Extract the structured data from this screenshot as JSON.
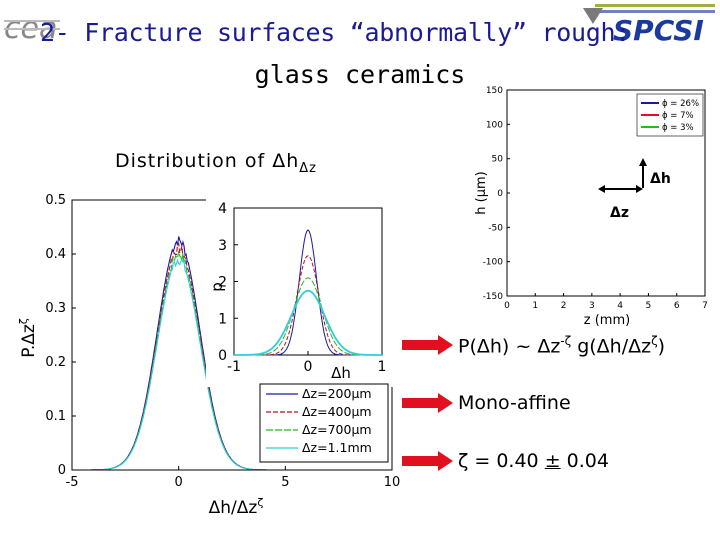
{
  "slide": {
    "title": "2- Fracture surfaces “abnormally” rough:",
    "subtitle": "glass ceramics",
    "distribution_label": "Distribution of Δh",
    "distribution_label_sub": "Δz",
    "logo_left": "cea",
    "logo_right": "SPCSI",
    "colors": {
      "title": "#1a1a99",
      "arrow": "#e01020"
    }
  },
  "bullets": [
    {
      "label": "P(Δh) ~ Δz",
      "sup": "-ζ",
      "tail": " g(Δh/Δz",
      "tail_sup": "ζ",
      "close": ")"
    },
    {
      "label": "Mono-affine"
    },
    {
      "label": "ζ = 0.40",
      "pm": "±",
      "value": "0.04"
    }
  ],
  "chart_data": [
    {
      "type": "line",
      "id": "main-collapse",
      "xlabel": "Δh/Δzζ",
      "xlabel_parts": [
        "Δh/Δz",
        "ζ"
      ],
      "ylabel": "P.Δzζ",
      "ylabel_parts": [
        "P.Δz",
        "ζ"
      ],
      "xlim": [
        -5,
        10
      ],
      "ylim": [
        0,
        0.5
      ],
      "xticks": [
        "-5",
        "0",
        "5",
        "10"
      ],
      "yticks": [
        "0",
        "0.1",
        "0.2",
        "0.3",
        "0.4",
        "0.5"
      ],
      "legend": [
        "Δz=200μm",
        "Δz=400μm",
        "Δz=700μm",
        "Δz=1.1mm"
      ],
      "legend_position": "bottom-right",
      "series_peaks": [
        0.425,
        0.41,
        0.4,
        0.39
      ],
      "series_width": 1.0
    },
    {
      "type": "line",
      "id": "inset-distribution",
      "xlabel": "Δh",
      "ylabel": "p",
      "xlim": [
        -1,
        1
      ],
      "ylim": [
        0,
        4
      ],
      "xticks": [
        "-1",
        "0",
        "1"
      ],
      "yticks": [
        "0",
        "1",
        "2",
        "3",
        "4"
      ],
      "series_peaks": [
        3.4,
        2.7,
        2.1,
        1.75
      ]
    },
    {
      "type": "line",
      "id": "height-profiles",
      "xlabel": "z (mm)",
      "ylabel": "h (μm)",
      "xlim": [
        0,
        7
      ],
      "ylim": [
        -150,
        150
      ],
      "xticks": [
        "0",
        "1",
        "2",
        "3",
        "4",
        "5",
        "6",
        "7"
      ],
      "yticks": [
        "-150",
        "-100",
        "-50",
        "0",
        "50",
        "100",
        "150"
      ],
      "legend": [
        "ϕ = 26%",
        "ϕ = 7%",
        "ϕ = 3%"
      ],
      "legend_position": "top-right",
      "series_colors": [
        "#1a1aa0",
        "#e01020",
        "#22bb22"
      ],
      "annotations": [
        "Δh",
        "Δz"
      ]
    }
  ]
}
